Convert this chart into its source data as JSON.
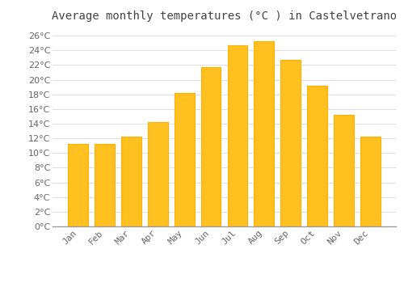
{
  "title": "Average monthly temperatures (°C ) in Castelvetrano",
  "months": [
    "Jan",
    "Feb",
    "Mar",
    "Apr",
    "May",
    "Jun",
    "Jul",
    "Aug",
    "Sep",
    "Oct",
    "Nov",
    "Dec"
  ],
  "values": [
    11.2,
    11.2,
    12.2,
    14.2,
    18.2,
    21.7,
    24.7,
    25.2,
    22.7,
    19.2,
    15.2,
    12.2
  ],
  "bar_color": "#FFC020",
  "bar_edge_color": "#FFB000",
  "background_color": "#FFFFFF",
  "plot_bg_color": "#FFFFFF",
  "grid_color": "#DDDDDD",
  "ylim": [
    0,
    27
  ],
  "yticks": [
    0,
    2,
    4,
    6,
    8,
    10,
    12,
    14,
    16,
    18,
    20,
    22,
    24,
    26
  ],
  "title_fontsize": 10,
  "tick_fontsize": 8,
  "title_color": "#444444",
  "tick_color": "#666666",
  "bar_width": 0.75
}
